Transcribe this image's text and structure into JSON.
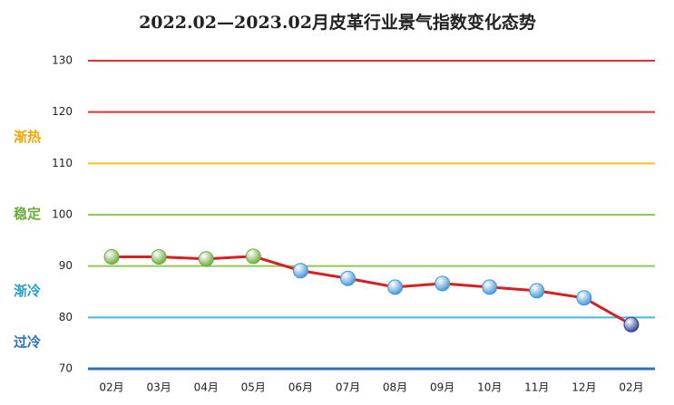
{
  "chart_data": {
    "type": "line",
    "title": "2022.02—2023.02月皮革行业景气指数变化态势",
    "categories": [
      "02月",
      "03月",
      "04月",
      "05月",
      "06月",
      "07月",
      "08月",
      "09月",
      "10月",
      "11月",
      "12月",
      "02月"
    ],
    "series": [
      {
        "color": "#d42020",
        "values": [
          91.8,
          91.8,
          91.4,
          91.9,
          89.1,
          87.6,
          85.9,
          86.6,
          85.9,
          85.2,
          83.8,
          78.6
        ],
        "point_colors": [
          "#6aab3a",
          "#6aab3a",
          "#6aab3a",
          "#6aab3a",
          "#3f95d8",
          "#3f95d8",
          "#3f95d8",
          "#3f95d8",
          "#3f95d8",
          "#3f95d8",
          "#3f95d8",
          "#2a3f8f"
        ]
      }
    ],
    "ylim": [
      70,
      130
    ],
    "yticks": [
      70,
      80,
      90,
      100,
      110,
      120,
      130
    ],
    "grid": true,
    "grid_colors": [
      "#2f6fba",
      "#45b8e6",
      "#92c755",
      "#92c755",
      "#f5c122",
      "#e03030",
      "#e03030"
    ],
    "annotations": [
      {
        "text": "渐热",
        "y": 115,
        "color": "#f0a800"
      },
      {
        "text": "稳定",
        "y": 100,
        "color": "#6aab3a"
      },
      {
        "text": "渐冷",
        "y": 85,
        "color": "#2aa0c8"
      },
      {
        "text": "过冷",
        "y": 75,
        "color": "#2a70b8"
      }
    ]
  }
}
